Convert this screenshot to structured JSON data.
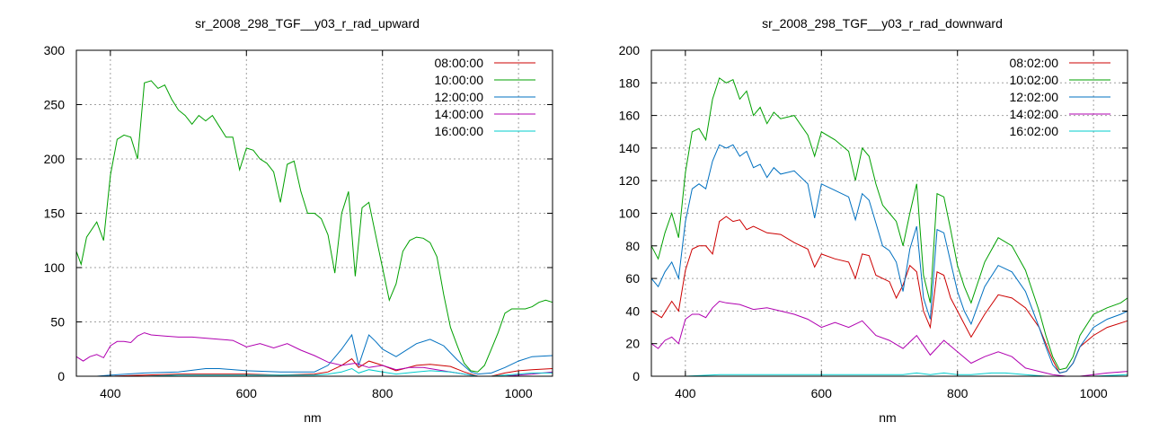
{
  "chart_data": [
    {
      "type": "line",
      "title": "sr_2008_298_TGF__y03_r_rad_upward",
      "xlabel": "nm",
      "ylabel": "",
      "xlim": [
        350,
        1050
      ],
      "ylim": [
        0,
        300
      ],
      "xticks": [
        400,
        600,
        800,
        1000
      ],
      "yticks": [
        0,
        50,
        100,
        150,
        200,
        250,
        300
      ],
      "grid": true,
      "legend_position": "top-right",
      "series": [
        {
          "name": "08:00:00",
          "color": "#cc0000",
          "x": [
            350,
            380,
            400,
            450,
            500,
            550,
            600,
            650,
            700,
            720,
            740,
            755,
            765,
            780,
            800,
            820,
            850,
            870,
            900,
            920,
            940,
            960,
            980,
            1000,
            1020,
            1050
          ],
          "y": [
            0,
            0,
            0,
            1,
            2,
            2,
            2,
            1,
            2,
            4,
            10,
            16,
            8,
            14,
            10,
            5,
            10,
            11,
            9,
            4,
            0,
            0,
            3,
            5,
            6,
            7
          ]
        },
        {
          "name": "10:00:00",
          "color": "#00a000",
          "x": [
            350,
            357,
            365,
            380,
            390,
            400,
            410,
            420,
            430,
            440,
            450,
            460,
            470,
            480,
            490,
            500,
            510,
            520,
            530,
            540,
            550,
            560,
            570,
            580,
            590,
            600,
            610,
            620,
            630,
            640,
            650,
            660,
            670,
            680,
            690,
            700,
            710,
            720,
            730,
            740,
            750,
            760,
            770,
            780,
            790,
            800,
            810,
            820,
            830,
            840,
            850,
            860,
            870,
            880,
            890,
            900,
            910,
            920,
            930,
            940,
            950,
            960,
            970,
            980,
            990,
            1000,
            1010,
            1020,
            1030,
            1040,
            1050
          ],
          "y": [
            115,
            103,
            128,
            142,
            125,
            185,
            218,
            222,
            220,
            200,
            270,
            272,
            265,
            268,
            255,
            245,
            240,
            232,
            240,
            235,
            240,
            230,
            220,
            220,
            190,
            210,
            208,
            200,
            196,
            188,
            160,
            195,
            198,
            170,
            150,
            150,
            145,
            130,
            95,
            150,
            170,
            92,
            155,
            160,
            130,
            100,
            70,
            85,
            115,
            125,
            128,
            127,
            123,
            110,
            75,
            45,
            28,
            12,
            5,
            4,
            10,
            25,
            40,
            58,
            62,
            62,
            62,
            64,
            68,
            70,
            68
          ]
        },
        {
          "name": "12:00:00",
          "color": "#0070c0",
          "x": [
            350,
            380,
            400,
            450,
            500,
            540,
            560,
            600,
            650,
            700,
            720,
            740,
            755,
            765,
            780,
            790,
            800,
            820,
            850,
            870,
            890,
            910,
            930,
            940,
            960,
            980,
            1000,
            1020,
            1050
          ],
          "y": [
            0,
            0,
            1,
            3,
            4,
            7,
            7,
            5,
            4,
            4,
            10,
            25,
            38,
            10,
            38,
            32,
            25,
            18,
            30,
            34,
            28,
            15,
            4,
            2,
            3,
            8,
            14,
            18,
            19
          ]
        },
        {
          "name": "14:00:00",
          "color": "#b000b0",
          "x": [
            350,
            360,
            370,
            380,
            390,
            400,
            410,
            420,
            430,
            440,
            450,
            460,
            480,
            500,
            520,
            540,
            560,
            580,
            600,
            620,
            640,
            660,
            680,
            700,
            720,
            740,
            760,
            780,
            800,
            820,
            840,
            860,
            880,
            900,
            920,
            940,
            960,
            980,
            1000,
            1020,
            1050
          ],
          "y": [
            18,
            14,
            18,
            20,
            17,
            28,
            32,
            32,
            31,
            37,
            40,
            38,
            37,
            36,
            36,
            35,
            34,
            33,
            27,
            30,
            26,
            30,
            24,
            19,
            13,
            10,
            12,
            8,
            10,
            6,
            8,
            8,
            6,
            4,
            2,
            0,
            0,
            0,
            1,
            2,
            4
          ]
        },
        {
          "name": "16:00:00",
          "color": "#00cccc",
          "x": [
            350,
            380,
            400,
            450,
            500,
            550,
            600,
            650,
            700,
            720,
            740,
            755,
            765,
            780,
            800,
            820,
            850,
            870,
            900,
            920,
            940,
            960,
            980,
            1000,
            1020,
            1050
          ],
          "y": [
            0,
            0,
            0,
            0,
            1,
            1,
            1,
            1,
            1,
            2,
            4,
            7,
            3,
            6,
            4,
            2,
            4,
            5,
            4,
            2,
            0,
            0,
            1,
            2,
            3,
            3
          ]
        }
      ]
    },
    {
      "type": "line",
      "title": "sr_2008_298_TGF__y03_r_rad_downward",
      "xlabel": "nm",
      "ylabel": "",
      "xlim": [
        350,
        1050
      ],
      "ylim": [
        0,
        200
      ],
      "xticks": [
        400,
        600,
        800,
        1000
      ],
      "yticks": [
        0,
        20,
        40,
        60,
        80,
        100,
        120,
        140,
        160,
        180,
        200
      ],
      "grid": true,
      "legend_position": "top-right",
      "series": [
        {
          "name": "08:02:00",
          "color": "#cc0000",
          "x": [
            350,
            365,
            380,
            390,
            400,
            410,
            420,
            430,
            440,
            450,
            460,
            470,
            480,
            490,
            500,
            520,
            540,
            560,
            580,
            590,
            600,
            620,
            640,
            650,
            660,
            670,
            680,
            700,
            710,
            720,
            730,
            740,
            750,
            760,
            770,
            780,
            790,
            800,
            820,
            840,
            860,
            880,
            900,
            920,
            930,
            940,
            950,
            960,
            970,
            980,
            1000,
            1020,
            1050
          ],
          "y": [
            40,
            36,
            46,
            40,
            65,
            78,
            80,
            80,
            75,
            95,
            98,
            95,
            96,
            90,
            92,
            88,
            87,
            82,
            78,
            67,
            75,
            72,
            70,
            60,
            75,
            74,
            62,
            58,
            48,
            56,
            68,
            64,
            40,
            30,
            64,
            62,
            48,
            40,
            24,
            38,
            50,
            48,
            42,
            30,
            20,
            10,
            2,
            3,
            8,
            18,
            25,
            30,
            34
          ]
        },
        {
          "name": "10:02:00",
          "color": "#00a000",
          "x": [
            350,
            360,
            370,
            380,
            390,
            400,
            410,
            420,
            430,
            440,
            450,
            460,
            470,
            480,
            490,
            500,
            510,
            520,
            530,
            540,
            560,
            580,
            590,
            600,
            620,
            640,
            650,
            660,
            670,
            680,
            690,
            700,
            710,
            720,
            730,
            740,
            750,
            760,
            770,
            780,
            790,
            800,
            810,
            820,
            840,
            860,
            880,
            900,
            920,
            930,
            940,
            950,
            960,
            970,
            980,
            1000,
            1020,
            1040,
            1050
          ],
          "y": [
            80,
            72,
            88,
            100,
            85,
            125,
            150,
            152,
            145,
            170,
            183,
            180,
            182,
            170,
            175,
            160,
            165,
            155,
            162,
            158,
            160,
            148,
            135,
            150,
            145,
            138,
            120,
            140,
            135,
            118,
            105,
            100,
            95,
            80,
            100,
            118,
            62,
            45,
            112,
            110,
            90,
            68,
            55,
            45,
            70,
            85,
            80,
            65,
            40,
            25,
            12,
            4,
            5,
            12,
            25,
            38,
            42,
            45,
            48
          ]
        },
        {
          "name": "12:02:00",
          "color": "#0070c0",
          "x": [
            350,
            360,
            370,
            380,
            390,
            400,
            410,
            420,
            430,
            440,
            450,
            460,
            470,
            480,
            490,
            500,
            510,
            520,
            530,
            540,
            560,
            580,
            590,
            600,
            620,
            640,
            650,
            660,
            670,
            680,
            690,
            700,
            710,
            720,
            730,
            740,
            750,
            760,
            770,
            780,
            790,
            800,
            810,
            820,
            840,
            860,
            880,
            900,
            920,
            930,
            940,
            950,
            960,
            970,
            980,
            1000,
            1020,
            1040,
            1050
          ],
          "y": [
            60,
            55,
            64,
            70,
            60,
            95,
            115,
            118,
            115,
            132,
            142,
            140,
            142,
            135,
            138,
            128,
            130,
            122,
            128,
            124,
            126,
            118,
            97,
            118,
            114,
            110,
            96,
            112,
            108,
            94,
            80,
            77,
            70,
            52,
            78,
            92,
            48,
            35,
            90,
            88,
            70,
            52,
            40,
            32,
            55,
            68,
            64,
            52,
            30,
            18,
            7,
            2,
            3,
            8,
            18,
            30,
            35,
            38,
            40
          ]
        },
        {
          "name": "14:02:00",
          "color": "#b000b0",
          "x": [
            350,
            360,
            370,
            380,
            390,
            400,
            410,
            420,
            430,
            440,
            450,
            460,
            480,
            500,
            520,
            540,
            560,
            580,
            600,
            620,
            640,
            660,
            680,
            700,
            720,
            740,
            760,
            780,
            800,
            820,
            840,
            860,
            880,
            900,
            920,
            940,
            960,
            980,
            1000,
            1020,
            1050
          ],
          "y": [
            20,
            17,
            22,
            24,
            20,
            35,
            38,
            38,
            36,
            42,
            46,
            45,
            44,
            41,
            42,
            40,
            38,
            35,
            30,
            33,
            30,
            34,
            25,
            22,
            17,
            25,
            13,
            22,
            15,
            8,
            12,
            15,
            12,
            5,
            3,
            1,
            0,
            0,
            1,
            2,
            3
          ]
        },
        {
          "name": "16:02:00",
          "color": "#00cccc",
          "x": [
            350,
            380,
            400,
            450,
            500,
            550,
            600,
            650,
            700,
            720,
            740,
            760,
            780,
            800,
            820,
            850,
            870,
            900,
            930,
            950,
            980,
            1000,
            1050
          ],
          "y": [
            0,
            0,
            0,
            1,
            1,
            1,
            1,
            1,
            1,
            1,
            2,
            1,
            2,
            1,
            1,
            2,
            2,
            1,
            0,
            0,
            0,
            0,
            1
          ]
        }
      ]
    }
  ]
}
